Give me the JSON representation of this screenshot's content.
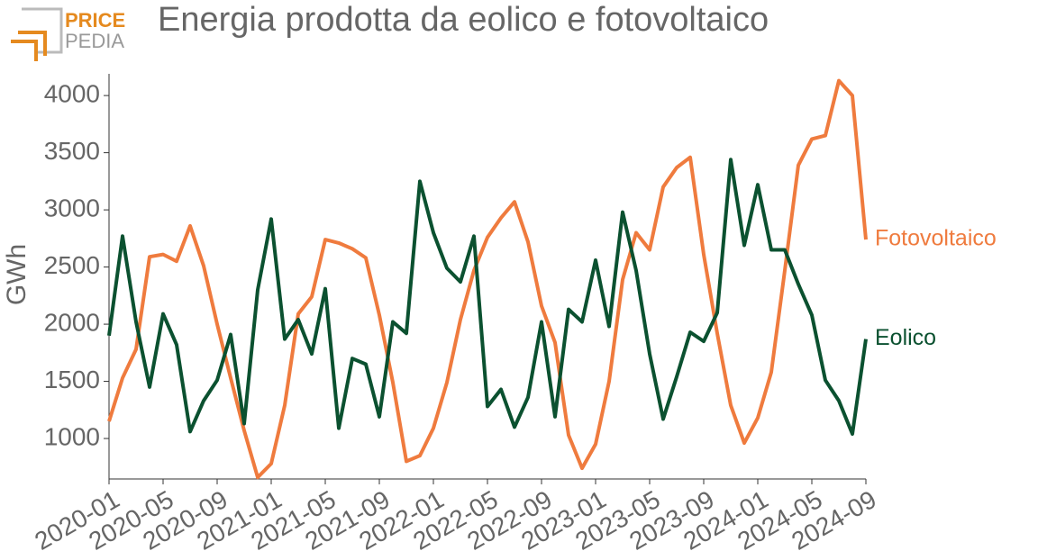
{
  "logo": [
    "PRICE",
    "PEDIA"
  ],
  "chart_data": {
    "type": "line",
    "title": "Energia prodotta da eolico e fotovoltaico",
    "y_label": "GWh",
    "x": [
      "2020-01",
      "2020-02",
      "2020-03",
      "2020-04",
      "2020-05",
      "2020-06",
      "2020-07",
      "2020-08",
      "2020-09",
      "2020-10",
      "2020-11",
      "2020-12",
      "2021-01",
      "2021-02",
      "2021-03",
      "2021-04",
      "2021-05",
      "2021-06",
      "2021-07",
      "2021-08",
      "2021-09",
      "2021-10",
      "2021-11",
      "2021-12",
      "2022-01",
      "2022-02",
      "2022-03",
      "2022-04",
      "2022-05",
      "2022-06",
      "2022-07",
      "2022-08",
      "2022-09",
      "2022-10",
      "2022-11",
      "2022-12",
      "2023-01",
      "2023-02",
      "2023-03",
      "2023-04",
      "2023-05",
      "2023-06",
      "2023-07",
      "2023-08",
      "2023-09",
      "2023-10",
      "2023-11",
      "2023-12",
      "2024-01",
      "2024-02",
      "2024-03",
      "2024-04",
      "2024-05",
      "2024-06",
      "2024-07",
      "2024-08",
      "2024-09"
    ],
    "series": [
      {
        "name": "Fotovoltaico",
        "color": "#ef7b3e",
        "values": [
          1150,
          1530,
          1780,
          2590,
          2610,
          2550,
          2860,
          2510,
          2000,
          1530,
          1070,
          660,
          780,
          1290,
          2090,
          2240,
          2740,
          2710,
          2660,
          2580,
          2080,
          1490,
          800,
          850,
          1090,
          1490,
          2040,
          2470,
          2760,
          2930,
          3070,
          2720,
          2160,
          1840,
          1030,
          740,
          950,
          1500,
          2390,
          2800,
          2650,
          3200,
          3370,
          3460,
          2610,
          1920,
          1290,
          960,
          1180,
          1580,
          2470,
          3390,
          3620,
          3650,
          4130,
          4000,
          2740
        ]
      },
      {
        "name": "Eolico",
        "color": "#0b5130",
        "values": [
          1900,
          2770,
          2020,
          1450,
          2090,
          1820,
          1060,
          1330,
          1510,
          1910,
          1130,
          2300,
          2920,
          1870,
          2040,
          1740,
          2310,
          1090,
          1700,
          1650,
          1190,
          2020,
          1920,
          3250,
          2800,
          2490,
          2370,
          2770,
          1280,
          1430,
          1100,
          1360,
          2020,
          1190,
          2130,
          2020,
          2560,
          1980,
          2980,
          2470,
          1740,
          1170,
          1540,
          1930,
          1850,
          2100,
          3440,
          2690,
          3220,
          2650,
          2650,
          2350,
          2080,
          1510,
          1330,
          1040,
          1870
        ]
      }
    ],
    "ylim": [
      646,
      4190
    ],
    "yticks": [
      1000,
      1500,
      2000,
      2500,
      3000,
      3500,
      4000
    ],
    "xtick_every": 4
  }
}
